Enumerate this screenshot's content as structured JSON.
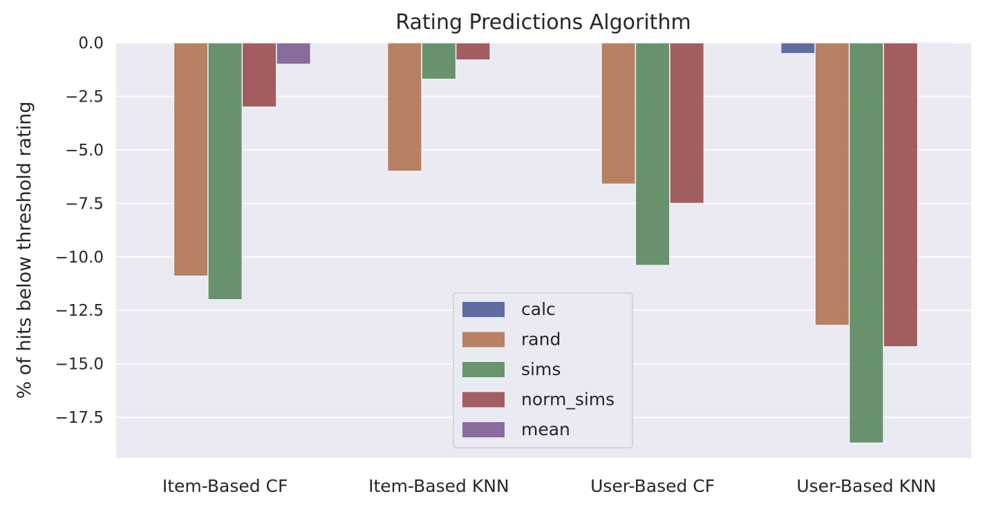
{
  "chart_data": {
    "type": "bar",
    "title": "Rating Predictions Algorithm",
    "xlabel": "",
    "ylabel": "% of hits below threshold rating",
    "categories": [
      "Item-Based CF",
      "Item-Based KNN",
      "User-Based CF",
      "User-Based KNN"
    ],
    "ylim": [
      -19.4,
      0.0
    ],
    "yticks": [
      0.0,
      -2.5,
      -5.0,
      -7.5,
      -10.0,
      -12.5,
      -15.0,
      -17.5
    ],
    "ytick_labels": [
      "0.0",
      "−2.5",
      "−5.0",
      "−7.5",
      "−10.0",
      "−12.5",
      "−15.0",
      "−17.5"
    ],
    "grid": true,
    "legend_position": "lower center",
    "series": [
      {
        "name": "calc",
        "color": "#4c5a96",
        "values": [
          0.0,
          0.0,
          0.0,
          -0.5
        ]
      },
      {
        "name": "rand",
        "color": "#b0724f",
        "values": [
          -10.9,
          -6.0,
          -6.6,
          -13.2
        ]
      },
      {
        "name": "sims",
        "color": "#55875b",
        "values": [
          -12.0,
          -1.7,
          -10.4,
          -18.7
        ]
      },
      {
        "name": "norm_sims",
        "color": "#984a4d",
        "values": [
          -3.0,
          -0.8,
          -7.5,
          -14.2
        ]
      },
      {
        "name": "mean",
        "color": "#7b5b92",
        "values": [
          -1.0,
          0.0,
          0.0,
          -0.05
        ]
      }
    ]
  }
}
